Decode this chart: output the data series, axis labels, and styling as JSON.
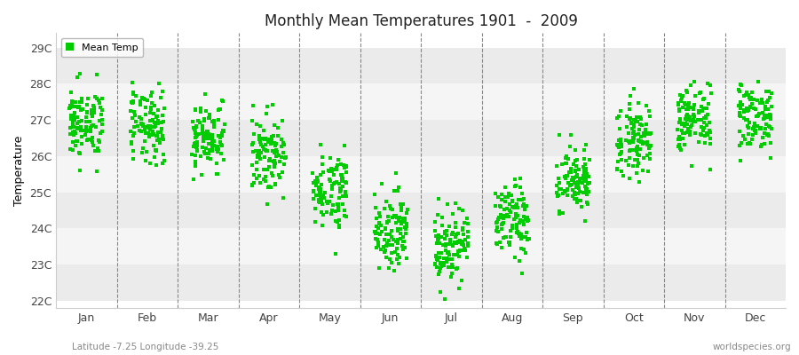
{
  "title": "Monthly Mean Temperatures 1901  -  2009",
  "ylabel": "Temperature",
  "xlabel_months": [
    "Jan",
    "Feb",
    "Mar",
    "Apr",
    "May",
    "Jun",
    "Jul",
    "Aug",
    "Sep",
    "Oct",
    "Nov",
    "Dec"
  ],
  "ytick_labels": [
    "22C",
    "23C",
    "24C",
    "25C",
    "26C",
    "27C",
    "28C",
    "29C"
  ],
  "ytick_values": [
    22,
    23,
    24,
    25,
    26,
    27,
    28,
    29
  ],
  "ylim": [
    21.8,
    29.4
  ],
  "legend_label": "Mean Temp",
  "marker_color": "#00cc00",
  "marker_size": 3,
  "background_color": "#ffffff",
  "plot_bg_color": "#ffffff",
  "band_colors": [
    "#ebebeb",
    "#f5f5f5"
  ],
  "subtitle_left": "Latitude -7.25 Longitude -39.25",
  "subtitle_right": "worldspecies.org",
  "start_year": 1901,
  "end_year": 2009,
  "monthly_mean": [
    26.9,
    26.8,
    26.55,
    26.05,
    25.1,
    24.0,
    23.55,
    24.2,
    25.3,
    26.5,
    27.0,
    27.1
  ],
  "monthly_std": [
    0.5,
    0.52,
    0.48,
    0.52,
    0.52,
    0.52,
    0.52,
    0.52,
    0.48,
    0.5,
    0.48,
    0.48
  ],
  "seed": 42
}
